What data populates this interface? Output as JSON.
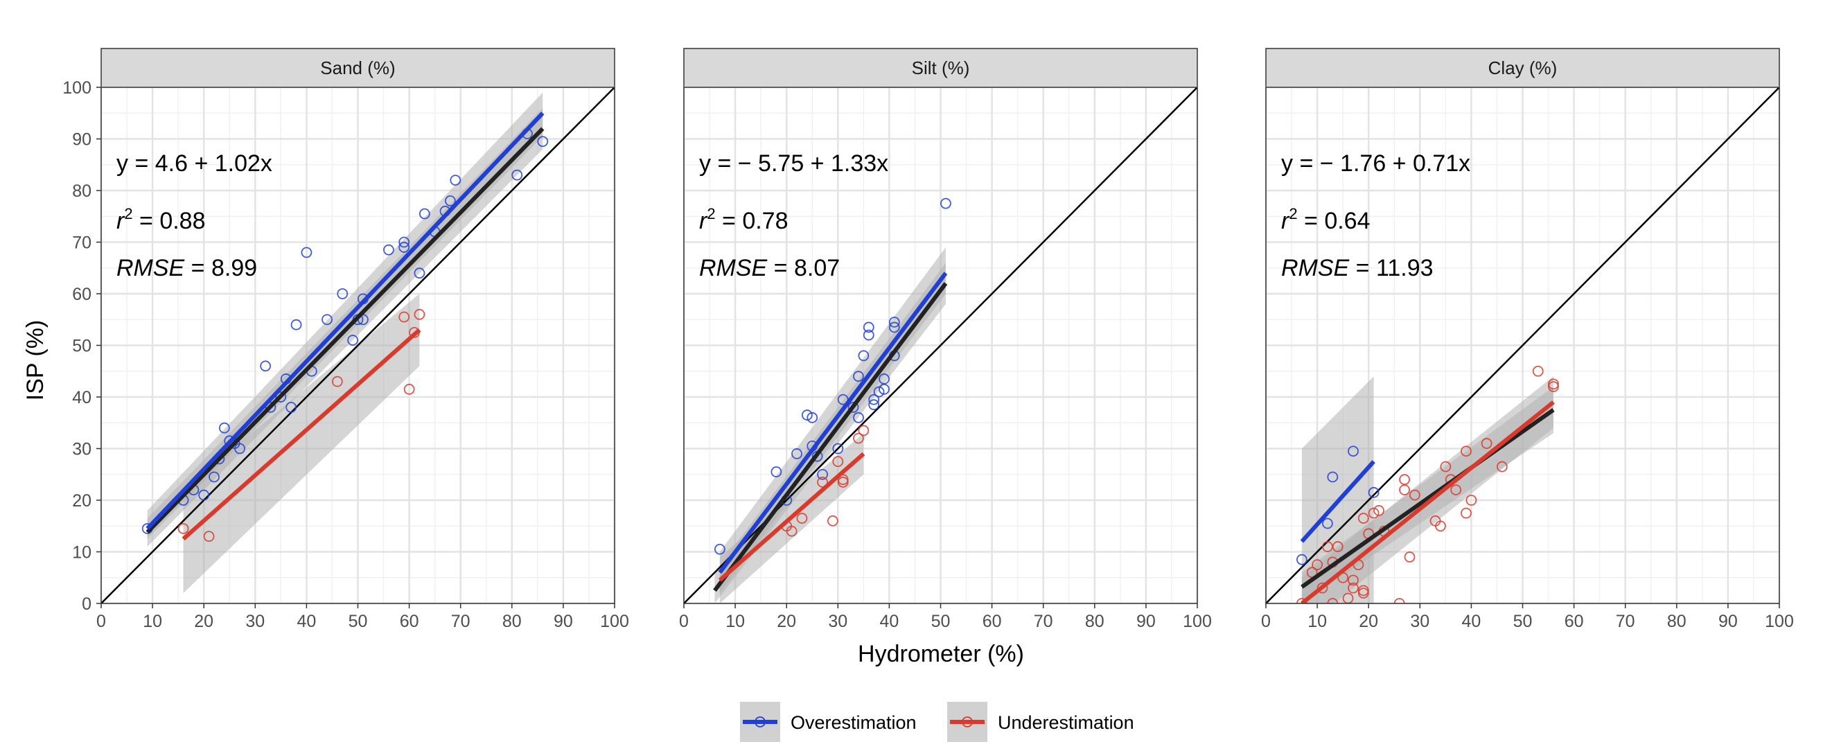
{
  "chart_data": [
    {
      "type": "scatter",
      "title": "Sand (%)",
      "xlim": [
        0,
        100
      ],
      "ylim": [
        0,
        100
      ],
      "annotations": {
        "equation": "y = 4.6 + 1.02x",
        "r2": "= 0.88",
        "rmse": "= 8.99"
      },
      "series": [
        {
          "name": "Overestimation",
          "color": "#1f3fd6",
          "points": [
            [
              9,
              14.5
            ],
            [
              16,
              20
            ],
            [
              18,
              22
            ],
            [
              20,
              21
            ],
            [
              22,
              24.5
            ],
            [
              23,
              28
            ],
            [
              24,
              34
            ],
            [
              25,
              31.5
            ],
            [
              26,
              31
            ],
            [
              27,
              30
            ],
            [
              32,
              46
            ],
            [
              33,
              38
            ],
            [
              35,
              40
            ],
            [
              36,
              43.5
            ],
            [
              37,
              38
            ],
            [
              38,
              54
            ],
            [
              40,
              68
            ],
            [
              41,
              45
            ],
            [
              44,
              55
            ],
            [
              47,
              60
            ],
            [
              49,
              51
            ],
            [
              50,
              55
            ],
            [
              51,
              59
            ],
            [
              51,
              55
            ],
            [
              56,
              68.5
            ],
            [
              59,
              69
            ],
            [
              59,
              70
            ],
            [
              62,
              64
            ],
            [
              63,
              75.5
            ],
            [
              65,
              72
            ],
            [
              67,
              76
            ],
            [
              68,
              78
            ],
            [
              69,
              82
            ],
            [
              81,
              83
            ],
            [
              83,
              91
            ],
            [
              86,
              89.5
            ]
          ],
          "fit": {
            "x": [
              9,
              86
            ],
            "y": [
              14.5,
              95
            ]
          }
        },
        {
          "name": "Underestimation",
          "color": "#d93a2b",
          "points": [
            [
              16,
              14.5
            ],
            [
              21,
              13
            ],
            [
              46,
              43
            ],
            [
              59,
              55.5
            ],
            [
              60,
              41.5
            ],
            [
              61,
              52.5
            ],
            [
              62,
              56
            ]
          ],
          "fit": {
            "x": [
              16,
              62
            ],
            "y": [
              12.5,
              53
            ]
          }
        }
      ],
      "overall_fit": {
        "x": [
          9,
          86
        ],
        "y": [
          13.8,
          92
        ]
      },
      "ci_bands": [
        {
          "series": "Overestimation",
          "x": [
            9,
            86
          ],
          "lower": [
            12.5,
            90.5
          ],
          "upper": [
            18,
            99
          ]
        },
        {
          "series": "Underestimation",
          "x": [
            16,
            62
          ],
          "lower": [
            2,
            46
          ],
          "upper": [
            22,
            60
          ]
        },
        {
          "series": "Overall",
          "x": [
            9,
            86
          ],
          "lower": [
            11,
            88
          ],
          "upper": [
            16.5,
            96
          ]
        }
      ]
    },
    {
      "type": "scatter",
      "title": "Silt (%)",
      "xlim": [
        0,
        100
      ],
      "ylim": [
        0,
        100
      ],
      "annotations": {
        "equation": "y = − 5.75 + 1.33x",
        "r2": "= 0.78",
        "rmse": "= 8.07"
      },
      "series": [
        {
          "name": "Overestimation",
          "color": "#1f3fd6",
          "points": [
            [
              7,
              10.5
            ],
            [
              18,
              25.5
            ],
            [
              20,
              20
            ],
            [
              22,
              29
            ],
            [
              24,
              36.5
            ],
            [
              25,
              36
            ],
            [
              25,
              30.5
            ],
            [
              26,
              28.5
            ],
            [
              27,
              25
            ],
            [
              30,
              30
            ],
            [
              31,
              39.5
            ],
            [
              33,
              38
            ],
            [
              34,
              36
            ],
            [
              34,
              44
            ],
            [
              35,
              48
            ],
            [
              36,
              52
            ],
            [
              36,
              53.5
            ],
            [
              37,
              38.5
            ],
            [
              37,
              39.5
            ],
            [
              38,
              41
            ],
            [
              39,
              41.5
            ],
            [
              39,
              43.5
            ],
            [
              41,
              48
            ],
            [
              41,
              53.5
            ],
            [
              41,
              54.5
            ],
            [
              51,
              77.5
            ]
          ],
          "fit": {
            "x": [
              7,
              51
            ],
            "y": [
              6,
              64
            ]
          }
        },
        {
          "name": "Underestimation",
          "color": "#d93a2b",
          "points": [
            [
              20,
              15
            ],
            [
              21,
              14
            ],
            [
              23,
              16.5
            ],
            [
              27,
              23.5
            ],
            [
              29,
              16
            ],
            [
              30,
              27.5
            ],
            [
              31,
              24
            ],
            [
              31,
              23.5
            ],
            [
              34,
              32
            ],
            [
              35,
              33.5
            ]
          ],
          "fit": {
            "x": [
              7,
              35
            ],
            "y": [
              4.5,
              29
            ]
          }
        }
      ],
      "overall_fit": {
        "x": [
          6,
          51
        ],
        "y": [
          2.5,
          62
        ]
      },
      "ci_bands": [
        {
          "series": "Overestimation",
          "x": [
            7,
            51
          ],
          "lower": [
            2,
            60
          ],
          "upper": [
            10,
            69
          ]
        },
        {
          "series": "Underestimation",
          "x": [
            7,
            35
          ],
          "lower": [
            0,
            25
          ],
          "upper": [
            9,
            33
          ]
        },
        {
          "series": "Overall",
          "x": [
            6,
            51
          ],
          "lower": [
            0,
            58
          ],
          "upper": [
            6,
            66
          ]
        }
      ]
    },
    {
      "type": "scatter",
      "title": "Clay (%)",
      "xlim": [
        0,
        100
      ],
      "ylim": [
        0,
        100
      ],
      "annotations": {
        "equation": "y = − 1.76 + 0.71x",
        "r2": "= 0.64",
        "rmse": "= 11.93"
      },
      "series": [
        {
          "name": "Overestimation",
          "color": "#1f3fd6",
          "points": [
            [
              7,
              8.5
            ],
            [
              12,
              15.5
            ],
            [
              13,
              24.5
            ],
            [
              17,
              29.5
            ],
            [
              21,
              21.5
            ]
          ],
          "fit": {
            "x": [
              7,
              21
            ],
            "y": [
              12,
              27.5
            ]
          }
        },
        {
          "name": "Underestimation",
          "color": "#d93a2b",
          "points": [
            [
              7,
              0
            ],
            [
              9,
              6
            ],
            [
              10,
              7.5
            ],
            [
              11,
              3
            ],
            [
              12,
              11
            ],
            [
              13,
              0
            ],
            [
              13,
              8
            ],
            [
              14,
              11
            ],
            [
              15,
              5
            ],
            [
              16,
              1
            ],
            [
              17,
              4.5
            ],
            [
              17,
              3
            ],
            [
              18,
              7.5
            ],
            [
              19,
              2
            ],
            [
              19,
              2.5
            ],
            [
              19,
              16.5
            ],
            [
              20,
              13.5
            ],
            [
              21,
              17.5
            ],
            [
              22,
              18
            ],
            [
              23,
              14
            ],
            [
              26,
              0
            ],
            [
              27,
              22
            ],
            [
              27,
              24
            ],
            [
              28,
              9
            ],
            [
              29,
              21
            ],
            [
              33,
              16
            ],
            [
              34,
              15
            ],
            [
              35,
              26.5
            ],
            [
              36,
              24
            ],
            [
              37,
              22
            ],
            [
              39,
              17.5
            ],
            [
              39,
              29.5
            ],
            [
              40,
              20
            ],
            [
              43,
              31
            ],
            [
              46,
              26.5
            ],
            [
              53,
              45
            ],
            [
              56,
              42
            ],
            [
              56,
              42.5
            ]
          ],
          "fit": {
            "x": [
              7,
              56
            ],
            "y": [
              0,
              39
            ]
          }
        }
      ],
      "overall_fit": {
        "x": [
          7,
          56
        ],
        "y": [
          3.2,
          37.5
        ]
      },
      "ci_bands": [
        {
          "series": "Overestimation",
          "x": [
            7,
            21
          ],
          "lower": [
            -5,
            0
          ],
          "upper": [
            30,
            44
          ]
        },
        {
          "series": "Underestimation",
          "x": [
            7,
            56
          ],
          "lower": [
            -5,
            34
          ],
          "upper": [
            5,
            44
          ]
        },
        {
          "series": "Overall",
          "x": [
            7,
            56
          ],
          "lower": [
            0,
            33
          ],
          "upper": [
            6,
            42
          ]
        }
      ]
    }
  ],
  "axes": {
    "x_ticks": [
      "0",
      "10",
      "20",
      "30",
      "40",
      "50",
      "60",
      "70",
      "80",
      "90",
      "100"
    ],
    "y_ticks": [
      "0",
      "10",
      "20",
      "30",
      "40",
      "50",
      "60",
      "70",
      "80",
      "90",
      "100"
    ],
    "xlabel": "Hydrometer (%)",
    "ylabel": "ISP (%)"
  },
  "legend": {
    "position": "bottom",
    "items": [
      {
        "label": "Overestimation",
        "color": "#1f3fd6"
      },
      {
        "label": "Underestimation",
        "color": "#d93a2b"
      }
    ]
  },
  "colors": {
    "overall_fit": "#222222",
    "ci_band": "#b3b3b3",
    "identity_line": "#000000",
    "strip_fill": "#d9d9d9",
    "grid_major": "#e3e3e3",
    "grid_minor": "#f0f0f0"
  }
}
